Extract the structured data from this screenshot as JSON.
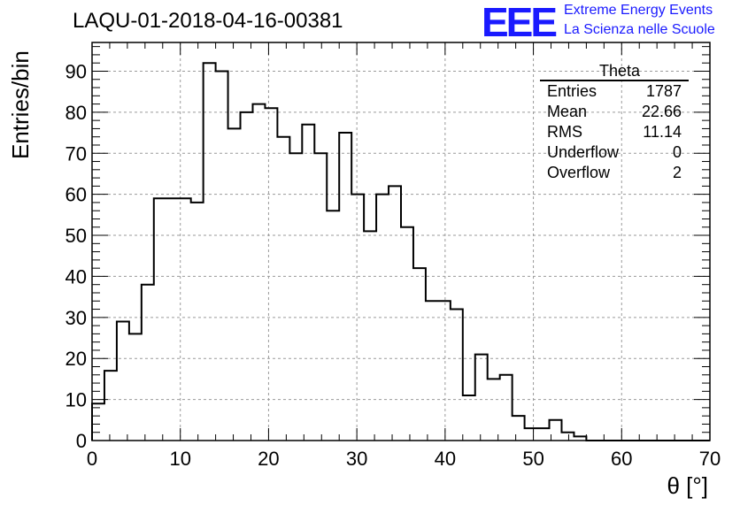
{
  "header": {
    "run_title": "LAQU-01-2018-04-16-00381",
    "logo_text": "EEE",
    "logo_line1": "Extreme Energy Events",
    "logo_line2": "La Scienza nelle Scuole"
  },
  "stats_box": {
    "title": "Theta",
    "rows": [
      {
        "label": "Entries",
        "value": "1787"
      },
      {
        "label": "Mean",
        "value": "22.66"
      },
      {
        "label": "RMS",
        "value": "11.14"
      },
      {
        "label": "Underflow",
        "value": "0"
      },
      {
        "label": "Overflow",
        "value": "2"
      }
    ]
  },
  "chart_data": {
    "type": "bar",
    "style": "step-histogram",
    "title": "LAQU-01-2018-04-16-00381",
    "xlabel": "θ [°]",
    "ylabel": "Entries/bin",
    "xlim": [
      0,
      70
    ],
    "ylim": [
      0,
      97
    ],
    "grid": true,
    "bin_width": 1.4,
    "bin_edges_start": 0,
    "values": [
      9,
      17,
      29,
      26,
      38,
      59,
      59,
      59,
      58,
      92,
      90,
      76,
      80,
      82,
      81,
      74,
      70,
      77,
      70,
      56,
      75,
      60,
      51,
      60,
      62,
      52,
      42,
      34,
      34,
      32,
      11,
      21,
      15,
      16,
      6,
      3,
      3,
      5,
      2,
      1,
      0,
      0,
      0,
      0,
      0,
      0,
      0,
      0,
      0,
      0
    ],
    "x_ticks": [
      "0",
      "10",
      "20",
      "30",
      "40",
      "50",
      "60",
      "70"
    ],
    "y_ticks": [
      "0",
      "10",
      "20",
      "30",
      "40",
      "50",
      "60",
      "70",
      "80",
      "90"
    ],
    "colors": {
      "line": "#000000",
      "grid": "#9a9a9a",
      "logo": "#1a1aff"
    }
  }
}
